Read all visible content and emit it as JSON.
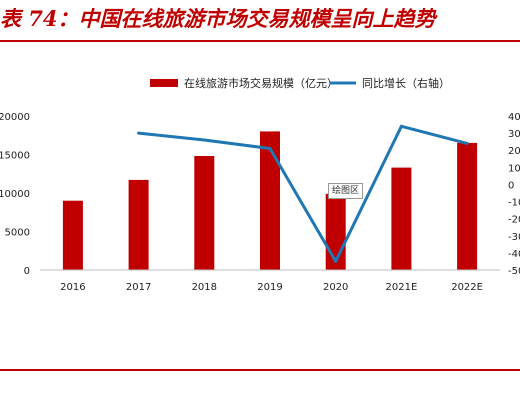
{
  "page_title": "表 74：中国在线旅游市场交易规模呈向上趋势",
  "tooltip": "绘图区",
  "chart_data": {
    "type": "bar",
    "categories": [
      "2016",
      "2017",
      "2018",
      "2019",
      "2020",
      "2021E",
      "2022E"
    ],
    "series": [
      {
        "name": "在线旅游市场交易规模（亿元）",
        "type": "bar",
        "axis": "left",
        "color": "#c00000",
        "values": [
          9000,
          11700,
          14800,
          18000,
          9900,
          13300,
          16500
        ]
      },
      {
        "name": "同比增长（右轴）",
        "type": "line",
        "axis": "right",
        "color": "#1f77b4",
        "values": [
          null,
          30,
          26,
          21,
          -45,
          34,
          24
        ]
      }
    ],
    "y_left": {
      "ylim": [
        0,
        20000
      ],
      "ticks": [
        "0",
        "5000",
        "10000",
        "15000",
        "20000"
      ]
    },
    "y_right": {
      "ylim": [
        -50,
        40
      ],
      "ticks": [
        "-50",
        "-40",
        "-30",
        "-20",
        "-10",
        "0",
        "10",
        "20",
        "30",
        "40"
      ]
    },
    "legend_position": "top"
  }
}
